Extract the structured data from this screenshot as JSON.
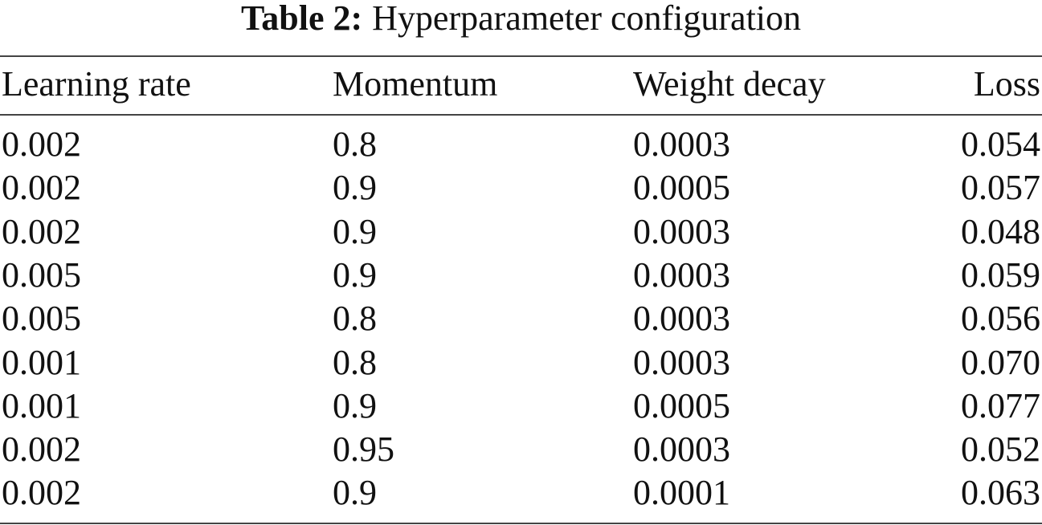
{
  "caption": {
    "label": "Table 2:",
    "text": "Hyperparameter configuration"
  },
  "table": {
    "header": [
      "Learning rate",
      "Momentum",
      "Weight decay",
      "Loss"
    ],
    "rows": [
      [
        "0.002",
        "0.8",
        "0.0003",
        "0.054"
      ],
      [
        "0.002",
        "0.9",
        "0.0005",
        "0.057"
      ],
      [
        "0.002",
        "0.9",
        "0.0003",
        "0.048"
      ],
      [
        "0.005",
        "0.9",
        "0.0003",
        "0.059"
      ],
      [
        "0.005",
        "0.8",
        "0.0003",
        "0.056"
      ],
      [
        "0.001",
        "0.8",
        "0.0003",
        "0.070"
      ],
      [
        "0.001",
        "0.9",
        "0.0005",
        "0.077"
      ],
      [
        "0.002",
        "0.95",
        "0.0003",
        "0.052"
      ],
      [
        "0.002",
        "0.9",
        "0.0001",
        "0.063"
      ]
    ]
  }
}
